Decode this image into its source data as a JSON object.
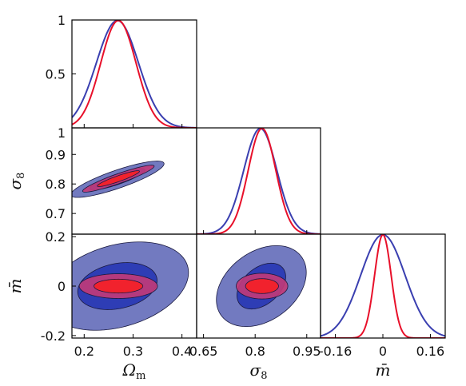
{
  "chart_data": {
    "type": "corner-plot",
    "title": "",
    "parameters": [
      {
        "key": "Om",
        "label": "Ω",
        "label_sub": "m",
        "range": [
          0.175,
          0.43
        ],
        "ticks": [
          {
            "v": 0.2,
            "t": "0.2"
          },
          {
            "v": 0.3,
            "t": "0.3"
          },
          {
            "v": 0.4,
            "t": "0.4"
          }
        ]
      },
      {
        "key": "s8",
        "label": "σ",
        "label_sub": "8",
        "range": [
          0.63,
          0.99
        ],
        "ticks": [
          {
            "v": 0.65,
            "t": "0.65"
          },
          {
            "v": 0.8,
            "t": "0.8"
          },
          {
            "v": 0.95,
            "t": "0.95"
          }
        ]
      },
      {
        "key": "m",
        "label": "m̄",
        "label_sub": "",
        "range": [
          -0.21,
          0.21
        ],
        "ticks": [
          {
            "v": -0.16,
            "t": "-0.16"
          },
          {
            "v": 0,
            "t": "0"
          },
          {
            "v": 0.16,
            "t": "0.16"
          }
        ]
      }
    ],
    "y_ticks": {
      "density": [
        {
          "v": 1,
          "t": "1"
        },
        {
          "v": 0.5,
          "t": "0.5"
        }
      ],
      "s8": [
        {
          "v": 0.9,
          "t": "0.9"
        },
        {
          "v": 0.8,
          "t": "0.8"
        },
        {
          "v": 0.7,
          "t": "0.7"
        }
      ],
      "m": [
        {
          "v": 0.2,
          "t": "0.2"
        },
        {
          "v": 0,
          "t": "0"
        },
        {
          "v": -0.2,
          "t": "-0.2"
        }
      ]
    },
    "top_left_tick": "1",
    "series": [
      {
        "color": "#3a3fb0",
        "fill_outer": "#6a73bd",
        "fill_inner": "#2e3db5",
        "marginals": {
          "Om": {
            "mean": 0.268,
            "sd": 0.043
          },
          "s8": {
            "mean": 0.815,
            "sd": 0.048
          },
          "m": {
            "mean": 0.0,
            "sd": 0.075
          }
        },
        "contours": {
          "Om_s8": {
            "cx": 0.268,
            "cy": 0.816,
            "a": 0.11,
            "b": 0.028,
            "angle_deg": -31,
            "a_inner": 0.065,
            "b_inner": 0.016
          },
          "Om_m": {
            "cx": 0.268,
            "cy": 0.0,
            "a": 0.13,
            "b": 0.19,
            "angle_deg": 28,
            "a_inner": 0.075,
            "b_inner": 0.1
          },
          "s8_m": {
            "cx": 0.818,
            "cy": 0.0,
            "a": 0.115,
            "b": 0.175,
            "angle_deg": 28,
            "a_inner": 0.06,
            "b_inner": 0.1
          }
        }
      },
      {
        "color": "#e8102a",
        "fill_outer": "#c33a78",
        "fill_inner": "#f1222d",
        "marginals": {
          "Om": {
            "mean": 0.27,
            "sd": 0.036
          },
          "s8": {
            "mean": 0.82,
            "sd": 0.04
          },
          "m": {
            "mean": 0.0,
            "sd": 0.028
          }
        },
        "contours": {
          "Om_s8": {
            "cx": 0.27,
            "cy": 0.818,
            "a": 0.085,
            "b": 0.015,
            "angle_deg": -31,
            "a_inner": 0.05,
            "b_inner": 0.009
          },
          "Om_m": {
            "cx": 0.27,
            "cy": 0.0,
            "a": 0.08,
            "b": 0.05,
            "angle_deg": 0,
            "a_inner": 0.05,
            "b_inner": 0.028
          },
          "s8_m": {
            "cx": 0.82,
            "cy": 0.0,
            "a": 0.075,
            "b": 0.052,
            "angle_deg": 0,
            "a_inner": 0.048,
            "b_inner": 0.03
          }
        }
      }
    ],
    "grid": false,
    "legend": "none"
  }
}
